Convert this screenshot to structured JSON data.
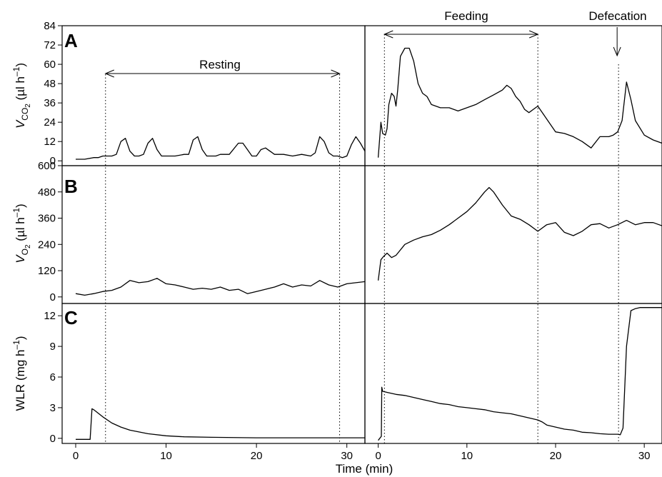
{
  "chart_data": {
    "type": "line",
    "x_label": "Time (min)",
    "x_ticks": [
      "0",
      "10",
      "20",
      "30"
    ],
    "xlim": [
      -1.5,
      32
    ],
    "annotations": {
      "resting": "Resting",
      "feeding": "Feeding",
      "defecation": "Defecation"
    },
    "markers": {
      "resting_start": 3.3,
      "resting_end": 29.2,
      "feeding_start": 0.7,
      "feeding_end": 18.0,
      "defecation": 27.1
    },
    "panels": [
      {
        "id": "A",
        "ylabel_main": "V",
        "ylabel_sub": "CO",
        "ylabel_subsub": "2",
        "ylabel_unit": "(µl h",
        "ylabel_sup": "–1",
        "ylabel_close": ")",
        "ylim": [
          -3,
          84
        ],
        "y_ticks": [
          "0",
          "12",
          "24",
          "36",
          "48",
          "60",
          "72",
          "84"
        ],
        "y_tick_values": [
          0,
          12,
          24,
          36,
          48,
          60,
          72,
          84
        ],
        "left": {
          "x": [
            0,
            1,
            2,
            2.5,
            3,
            3.5,
            4,
            4.5,
            5,
            5.5,
            6,
            6.5,
            7,
            7.5,
            8,
            8.5,
            9,
            9.5,
            10,
            11,
            12,
            12.5,
            13,
            13.5,
            14,
            14.5,
            15,
            15.5,
            16,
            17,
            18,
            18.5,
            19,
            19.5,
            20,
            20.5,
            21,
            21.5,
            22,
            23,
            24,
            25,
            26,
            26.5,
            27,
            27.5,
            28,
            28.5,
            29,
            29.5,
            30,
            30.5,
            31,
            31.5,
            32
          ],
          "y": [
            1,
            1,
            2,
            2,
            3,
            3,
            3,
            4,
            12,
            14,
            6,
            3,
            3,
            4,
            11,
            14,
            7,
            3,
            3,
            3,
            4,
            4,
            13,
            15,
            7,
            3,
            3,
            3,
            4,
            4,
            11,
            11,
            7,
            3,
            3,
            7,
            8,
            6,
            4,
            4,
            3,
            4,
            3,
            5,
            15,
            12,
            5,
            3,
            3,
            2,
            3,
            10,
            15,
            11,
            6
          ]
        },
        "right": {
          "x": [
            0,
            0.3,
            0.5,
            0.8,
            1,
            1.2,
            1.5,
            1.8,
            2,
            2.2,
            2.5,
            3,
            3.5,
            4,
            4.5,
            5,
            5.5,
            6,
            7,
            8,
            9,
            10,
            11,
            12,
            13,
            14,
            14.5,
            15,
            15.5,
            16,
            16.5,
            17,
            17.5,
            18,
            18.5,
            19,
            20,
            21,
            22,
            23,
            24,
            25,
            26,
            26.5,
            27,
            27.5,
            28,
            28.5,
            29,
            30,
            31,
            32
          ],
          "y": [
            2,
            24,
            17,
            16,
            20,
            35,
            42,
            40,
            34,
            44,
            65,
            70,
            70,
            62,
            48,
            42,
            40,
            35,
            33,
            33,
            31,
            33,
            35,
            38,
            41,
            44,
            47,
            45,
            40,
            37,
            32,
            30,
            32,
            34,
            30,
            26,
            18,
            17,
            15,
            12,
            8,
            15,
            15,
            16,
            18,
            25,
            49,
            38,
            25,
            16,
            13,
            11
          ]
        }
      },
      {
        "id": "B",
        "ylabel_main": "V",
        "ylabel_sub": "O",
        "ylabel_subsub": "2",
        "ylabel_unit": "(µl h",
        "ylabel_sup": "–1",
        "ylabel_close": ")",
        "ylim": [
          -30,
          600
        ],
        "y_ticks": [
          "0",
          "120",
          "240",
          "360",
          "480",
          "600"
        ],
        "y_tick_values": [
          0,
          120,
          240,
          360,
          480,
          600
        ],
        "left": {
          "x": [
            0,
            1,
            2,
            3,
            4,
            5,
            6,
            7,
            8,
            9,
            10,
            11,
            12,
            13,
            14,
            15,
            16,
            17,
            18,
            19,
            20,
            21,
            22,
            23,
            24,
            25,
            26,
            27,
            28,
            29,
            30,
            31,
            32
          ],
          "y": [
            15,
            8,
            15,
            25,
            30,
            45,
            75,
            65,
            70,
            85,
            60,
            55,
            45,
            35,
            40,
            35,
            45,
            30,
            35,
            15,
            25,
            35,
            45,
            60,
            45,
            55,
            50,
            75,
            55,
            45,
            60,
            65,
            70
          ]
        },
        "right": {
          "x": [
            0,
            0.3,
            0.6,
            1,
            1.5,
            2,
            3,
            4,
            5,
            6,
            7,
            8,
            9,
            10,
            11,
            12,
            12.5,
            13,
            14,
            15,
            16,
            17,
            18,
            19,
            20,
            21,
            22,
            23,
            24,
            25,
            26,
            27,
            28,
            29,
            30,
            31,
            32
          ],
          "y": [
            75,
            170,
            185,
            200,
            180,
            190,
            240,
            260,
            275,
            285,
            305,
            330,
            360,
            390,
            430,
            480,
            500,
            480,
            420,
            370,
            355,
            330,
            300,
            330,
            340,
            295,
            280,
            300,
            330,
            335,
            315,
            330,
            350,
            330,
            340,
            340,
            325
          ]
        }
      },
      {
        "id": "C",
        "ylabel_main": "WLR (mg h",
        "ylabel_sup": "–1",
        "ylabel_close": ")",
        "ylim": [
          -0.5,
          13.2
        ],
        "y_ticks": [
          "0",
          "3",
          "6",
          "9",
          "12"
        ],
        "y_tick_values": [
          0,
          3,
          6,
          9,
          12
        ],
        "left": {
          "x": [
            0,
            1,
            1.6,
            1.8,
            2,
            3,
            4,
            5,
            6,
            8,
            10,
            12,
            15,
            20,
            25,
            30,
            32
          ],
          "y": [
            -0.1,
            -0.1,
            -0.1,
            2.9,
            2.8,
            2.1,
            1.5,
            1.1,
            0.8,
            0.45,
            0.25,
            0.15,
            0.1,
            0.05,
            0.05,
            0.05,
            0.05
          ]
        },
        "right": {
          "x": [
            0,
            0.35,
            0.4,
            0.5,
            1,
            2,
            3,
            4,
            5,
            6,
            7,
            8,
            9,
            10,
            11,
            12,
            13,
            14,
            15,
            16,
            17,
            18,
            18.5,
            19,
            20,
            21,
            22,
            23,
            24,
            25,
            26,
            27,
            27.3,
            27.6,
            28,
            28.5,
            29,
            29.5,
            30,
            31,
            32
          ],
          "y": [
            -0.2,
            0.2,
            5.0,
            4.6,
            4.5,
            4.3,
            4.2,
            4.0,
            3.8,
            3.6,
            3.4,
            3.3,
            3.1,
            3.0,
            2.9,
            2.8,
            2.6,
            2.5,
            2.4,
            2.2,
            2.0,
            1.8,
            1.6,
            1.3,
            1.1,
            0.9,
            0.8,
            0.6,
            0.55,
            0.45,
            0.4,
            0.4,
            0.35,
            1.0,
            9.0,
            12.5,
            12.7,
            12.8,
            12.8,
            12.8,
            12.8
          ]
        }
      }
    ]
  }
}
